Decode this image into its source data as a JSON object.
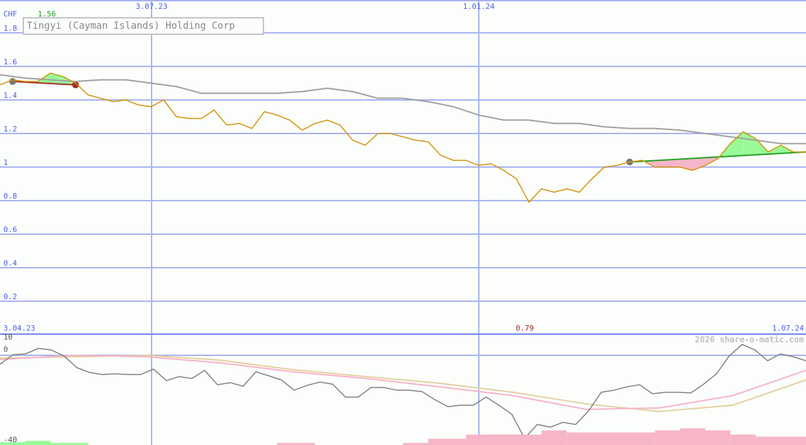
{
  "title": "Tingyi (Cayman Islands) Holding Corp",
  "currency": "CHF",
  "high_label": "1.56",
  "low_label": "0.79",
  "watermark": "2026 share-o-matic.com",
  "colors": {
    "price": "#d4920a",
    "benchmark": "#a0a0a0",
    "oscillator": "#808080",
    "osc_ma1": "#f7b3c8",
    "osc_ma2": "#e5cfa0",
    "grid": "#a8b4f0",
    "axis": "#6f86ee",
    "up_fill": "#98fb98",
    "down_fill": "#f7b6c8",
    "trend_down": "#a52a2a",
    "trend_up": "#22a022"
  },
  "chart_data": [
    {
      "type": "line",
      "title": "Tingyi (Cayman Islands) Holding Corp",
      "ylabel": "CHF",
      "ylim": [
        0,
        1.9
      ],
      "yticks": [
        "1.8",
        "1.6",
        "1.4",
        "1.2",
        "1",
        "0.8",
        "0.6",
        "0.4",
        "0.2"
      ],
      "ytick_values": [
        1.8,
        1.6,
        1.4,
        1.2,
        1.0,
        0.8,
        0.6,
        0.4,
        0.2
      ],
      "xticks_top": [
        "3.07.23",
        "1.01.24"
      ],
      "xticks_bottom": [
        "3.04.23",
        "1.07.24"
      ],
      "x_range": [
        "3.04.23",
        "1.07.24"
      ],
      "grid": true,
      "series": [
        {
          "values": [
            1.49,
            1.52,
            1.51,
            1.51,
            1.56,
            1.54,
            1.5,
            1.43,
            1.41,
            1.39,
            1.4,
            1.37,
            1.36,
            1.4,
            1.3,
            1.29,
            1.29,
            1.34,
            1.25,
            1.26,
            1.23,
            1.33,
            1.31,
            1.28,
            1.22,
            1.26,
            1.28,
            1.25,
            1.16,
            1.13,
            1.2,
            1.2,
            1.18,
            1.16,
            1.15,
            1.07,
            1.04,
            1.04,
            1.01,
            1.02,
            0.98,
            0.93,
            0.79,
            0.87,
            0.85,
            0.87,
            0.85,
            0.93,
            1.0,
            1.01,
            1.03,
            1.04,
            1.0,
            1.0,
            1.0,
            0.98,
            1.01,
            1.05,
            1.14,
            1.21,
            1.17,
            1.09,
            1.13,
            1.09,
            1.09
          ]
        },
        {
          "values": [
            1.55,
            1.53,
            1.52,
            1.51,
            1.52,
            1.52,
            1.5,
            1.48,
            1.44,
            1.44,
            1.44,
            1.44,
            1.45,
            1.47,
            1.45,
            1.41,
            1.41,
            1.39,
            1.36,
            1.31,
            1.28,
            1.28,
            1.26,
            1.26,
            1.24,
            1.23,
            1.23,
            1.22,
            1.2,
            1.18,
            1.16,
            1.14,
            1.14
          ]
        }
      ],
      "trend_lines": [
        {
          "from_index": 1,
          "to_index": 6,
          "from": 1.51,
          "to": 1.49,
          "direction": "down"
        },
        {
          "from_index": 50,
          "to_index": 64,
          "from": 1.03,
          "to": 1.09,
          "direction": "up"
        }
      ]
    },
    {
      "type": "line",
      "ylim": [
        -40,
        10
      ],
      "yticks": [
        "10",
        "0",
        "-40"
      ],
      "ytick_values": [
        10,
        0,
        -40
      ],
      "grid": true,
      "series": [
        {
          "values": [
            -4.3,
            0.3,
            0.7,
            3.3,
            2.6,
            -0.3,
            -5.9,
            -8.2,
            -9.2,
            -8.9,
            -9.2,
            -9.2,
            -6.6,
            -12.1,
            -10.2,
            -11.1,
            -7.2,
            -14.1,
            -13.1,
            -14.8,
            -7.9,
            -9.8,
            -11.8,
            -16.7,
            -14.4,
            -12.8,
            -13.8,
            -20,
            -20,
            -15.4,
            -15.4,
            -16.7,
            -16.7,
            -17.4,
            -21.3,
            -24.6,
            -23.9,
            -23.9,
            -20,
            -23.9,
            -28.2,
            -39.7,
            -33.1,
            -34.4,
            -32.1,
            -33.1,
            -26.6,
            -17.7,
            -16.7,
            -15.1,
            -14.1,
            -18.4,
            -17.7,
            -17.7,
            -18,
            -13.8,
            -8.9,
            -0.3,
            5.2,
            2.6,
            -2.6,
            0.7,
            -0.7,
            -2.6
          ]
        },
        {
          "values": [
            -2,
            0,
            -0.7,
            -3.6,
            -7.9,
            -11.1,
            -15.1,
            -19.3,
            -25.9,
            -25.2,
            -19.3,
            -7.2
          ]
        },
        {
          "values": [
            -1.3,
            -0.7,
            0,
            -2.3,
            -6.9,
            -10.2,
            -13.4,
            -17.7,
            -23.3,
            -26.9,
            -23.9,
            -11.8
          ]
        }
      ],
      "histogram": [
        {
          "from": 0,
          "to": 2,
          "value": 1.3,
          "sign": "positive"
        },
        {
          "from": 2,
          "to": 4,
          "value": 2,
          "sign": "positive"
        },
        {
          "from": 4,
          "to": 7,
          "value": 1,
          "sign": "positive"
        },
        {
          "from": 22,
          "to": 25,
          "value": 1,
          "sign": "negative"
        },
        {
          "from": 32,
          "to": 34,
          "value": 1,
          "sign": "negative"
        },
        {
          "from": 34,
          "to": 37,
          "value": 3,
          "sign": "negative"
        },
        {
          "from": 37,
          "to": 43,
          "value": 5,
          "sign": "negative"
        },
        {
          "from": 43,
          "to": 45,
          "value": 7,
          "sign": "negative"
        },
        {
          "from": 45,
          "to": 52,
          "value": 6,
          "sign": "negative"
        },
        {
          "from": 52,
          "to": 54,
          "value": 7,
          "sign": "negative"
        },
        {
          "from": 54,
          "to": 56,
          "value": 8,
          "sign": "negative"
        },
        {
          "from": 56,
          "to": 58,
          "value": 7,
          "sign": "negative"
        },
        {
          "from": 58,
          "to": 60,
          "value": 5,
          "sign": "negative"
        },
        {
          "from": 60,
          "to": 64,
          "value": 4,
          "sign": "negative"
        }
      ]
    }
  ]
}
